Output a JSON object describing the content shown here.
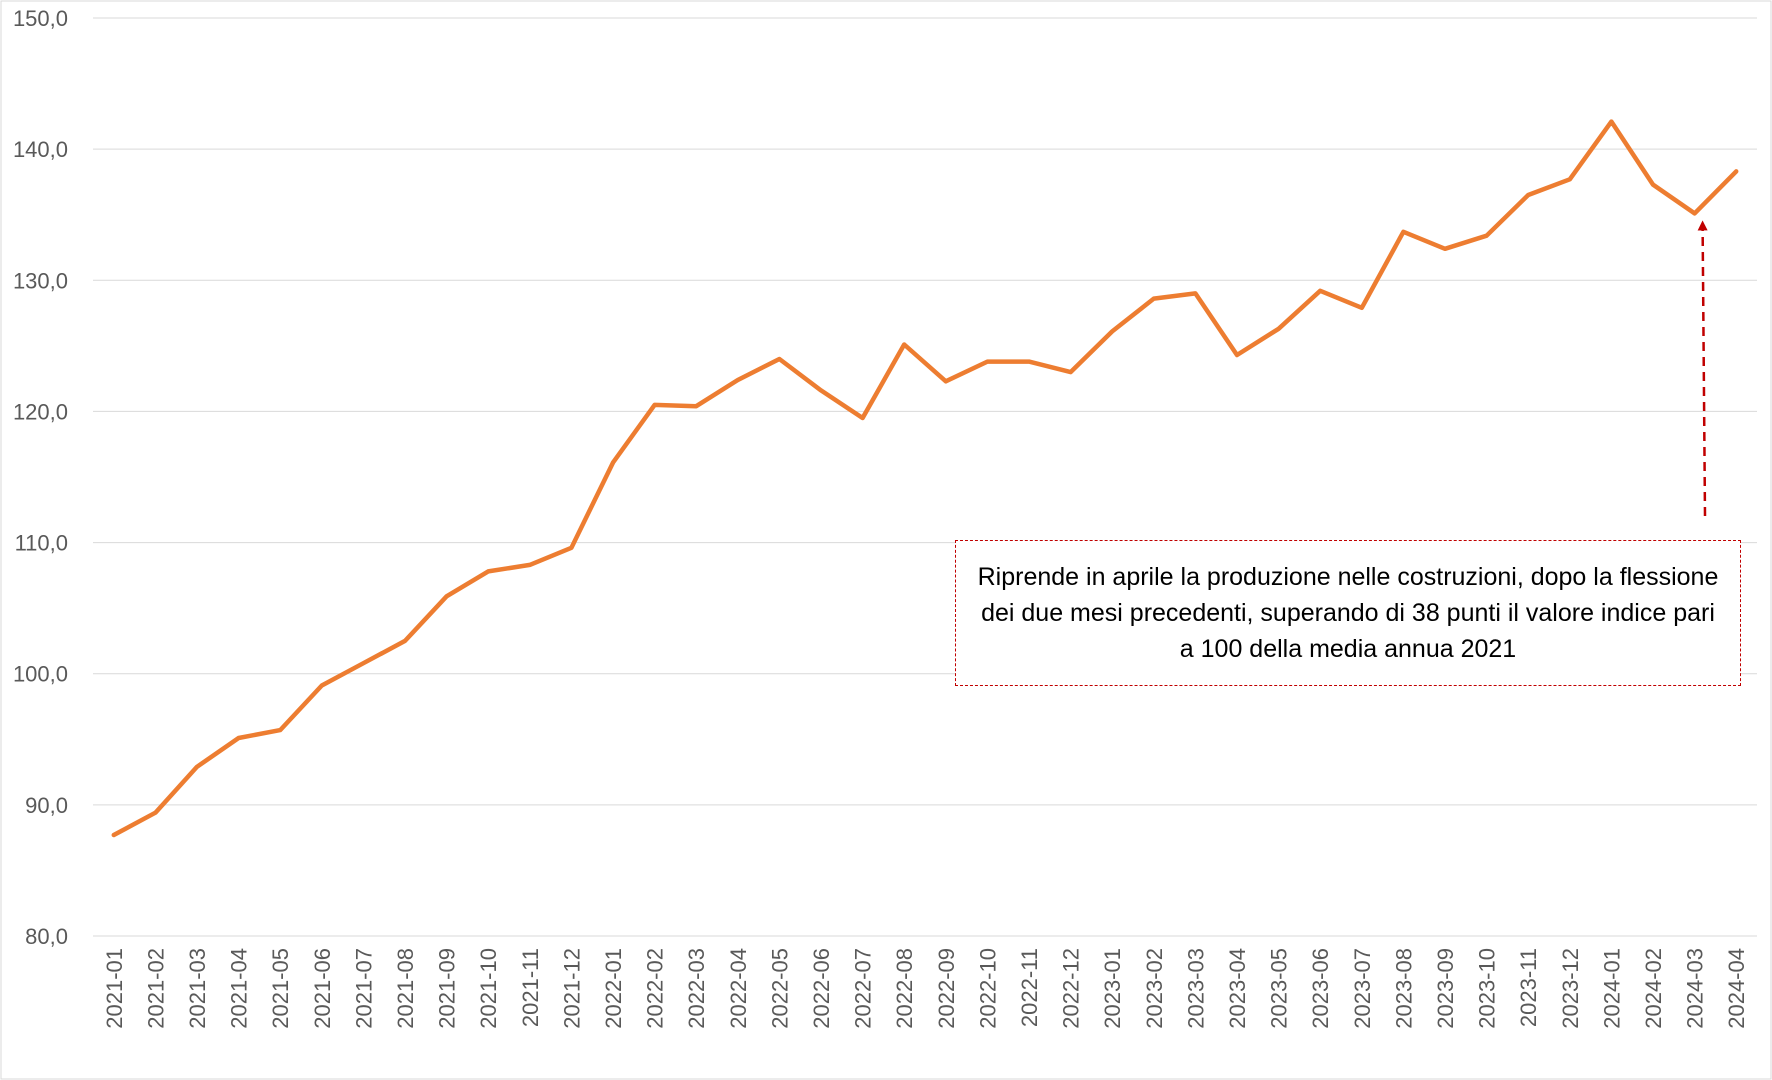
{
  "chart_data": {
    "type": "line",
    "title": "",
    "xlabel": "",
    "ylabel": "",
    "ylim": [
      80,
      150
    ],
    "yticks": [
      "80,0",
      "90,0",
      "100,0",
      "110,0",
      "120,0",
      "130,0",
      "140,0",
      "150,0"
    ],
    "grid": true,
    "legend": "none",
    "line_color": "#ed7d31",
    "annotation_color": "#c00000",
    "categories": [
      "2021-01",
      "2021-02",
      "2021-03",
      "2021-04",
      "2021-05",
      "2021-06",
      "2021-07",
      "2021-08",
      "2021-09",
      "2021-10",
      "2021-11",
      "2021-12",
      "2022-01",
      "2022-02",
      "2022-03",
      "2022-04",
      "2022-05",
      "2022-06",
      "2022-07",
      "2022-08",
      "2022-09",
      "2022-10",
      "2022-11",
      "2022-12",
      "2023-01",
      "2023-02",
      "2023-03",
      "2023-04",
      "2023-05",
      "2023-06",
      "2023-07",
      "2023-08",
      "2023-09",
      "2023-10",
      "2023-11",
      "2023-12",
      "2024-01",
      "2024-02",
      "2024-03",
      "2024-04"
    ],
    "series": [
      {
        "values": [
          87.7,
          89.4,
          92.9,
          95.1,
          95.7,
          99.1,
          100.8,
          102.5,
          105.9,
          107.8,
          108.3,
          109.6,
          116.1,
          120.5,
          120.4,
          122.4,
          124.0,
          121.6,
          119.5,
          125.1,
          122.3,
          123.8,
          123.8,
          123.0,
          126.1,
          128.6,
          129.0,
          124.3,
          126.3,
          129.2,
          127.9,
          133.7,
          132.4,
          133.4,
          136.5,
          137.7,
          142.1,
          137.3,
          135.1,
          138.3
        ]
      }
    ],
    "annotation": {
      "text": "Riprende in aprile la produzione nelle costruzioni, dopo la flessione dei due mesi precedenti, superando di 38 punti il valore indice pari a 100 della media annua 2021",
      "points_to": "2024-03"
    }
  }
}
